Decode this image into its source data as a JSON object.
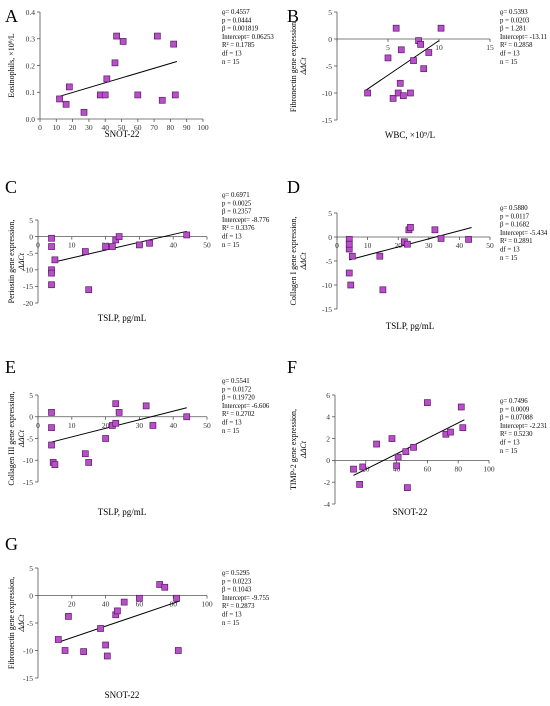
{
  "figure": {
    "panels": [
      {
        "letter": "A",
        "ylabel": [
          "Eosinophils, ×10⁹/L"
        ],
        "xlabel": "SNOT-22",
        "stats": [
          "ϱ= 0.4557",
          "p = 0.0444",
          "β = 0.001819",
          "Intercept= 0.06253",
          "R² = 0.1785",
          "df = 13",
          "n = 15"
        ]
      },
      {
        "letter": "B",
        "ylabel": [
          "Fibronectin gene expression,",
          "ΔΔCt"
        ],
        "xlabel": "WBC, ×10⁹/L",
        "stats": [
          "ϱ= 0.5393",
          "p = 0.0203",
          "β = 1.281",
          "Intercept= -13.11",
          "R² = 0.2858",
          "df = 13",
          "n = 15"
        ]
      },
      {
        "letter": "C",
        "ylabel": [
          "Periostin gene expression,",
          "ΔΔCt"
        ],
        "xlabel": "TSLP, pg/mL",
        "stats": [
          "ϱ= 0.6971",
          "p = 0.0025",
          "β = 0.2357",
          "Intercept= -8.776",
          "R² = 0.3376",
          "df = 13",
          "n = 15"
        ]
      },
      {
        "letter": "D",
        "ylabel": [
          "Collagen I gene expression,",
          "ΔΔCt"
        ],
        "xlabel": "TSLP, pg/mL",
        "stats": [
          "ϱ= 0.5880",
          "p = 0.0117",
          "β = 0.1682",
          "Intercept= -5.434",
          "R² = 0.2891",
          "df = 13",
          "n = 15"
        ]
      },
      {
        "letter": "E",
        "ylabel": [
          "Collagen III gene expression,",
          "ΔΔCt"
        ],
        "xlabel": "TSLP, pg/mL",
        "stats": [
          "ϱ= 0.5541",
          "p = 0.0172",
          "β = 0.19720",
          "Intercept= -6.606",
          "R² = 0.2702",
          "df = 13",
          "n = 15"
        ]
      },
      {
        "letter": "F",
        "ylabel": [
          "TIMP-2 gene expression,",
          "ΔΔCt"
        ],
        "xlabel": "SNOT-22",
        "stats": [
          "ϱ= 0.7496",
          "p = 0.0009",
          "β = 0.07088",
          "Intercept= -2.231",
          "R² = 0.5230",
          "df = 13",
          "n = 15"
        ]
      },
      {
        "letter": "G",
        "ylabel": [
          "Fibronectin gene expression,",
          "ΔΔCt"
        ],
        "xlabel": "SNOT-22",
        "stats": [
          "ϱ= 0.5295",
          "p = 0.0223",
          "β = 0.1043",
          "Intercept= -9.755",
          "R² = 0.2873",
          "df = 13",
          "n = 15"
        ]
      }
    ]
  },
  "colors": {
    "marker_fill": "#b84fc8",
    "marker_stroke": "#5a1a66",
    "line": "#000000",
    "axis": "#555555"
  },
  "chart_data": [
    {
      "type": "scatter",
      "panel": "A",
      "xlim": [
        0,
        100
      ],
      "ylim": [
        0.0,
        0.4
      ],
      "xticks": [
        0,
        10,
        20,
        30,
        40,
        50,
        60,
        70,
        80,
        90,
        100
      ],
      "yticks": [
        0.0,
        0.1,
        0.2,
        0.3,
        0.4
      ],
      "x_tick_labels": [
        "0",
        "10",
        "20",
        "30",
        "40",
        "50",
        "60",
        "70",
        "80",
        "90",
        "100"
      ],
      "y_tick_labels": [
        "0.0",
        "0.1",
        "0.2",
        "0.3",
        "0.4"
      ],
      "x": [
        12,
        16,
        18,
        27,
        37,
        40,
        41,
        46,
        47,
        51,
        60,
        72,
        75,
        82,
        83
      ],
      "y": [
        0.075,
        0.055,
        0.12,
        0.025,
        0.09,
        0.09,
        0.15,
        0.21,
        0.31,
        0.29,
        0.09,
        0.31,
        0.07,
        0.28,
        0.09
      ],
      "fit": {
        "x": [
          10,
          84
        ],
        "y": [
          0.081,
          0.215
        ]
      }
    },
    {
      "type": "scatter",
      "panel": "B",
      "xlim": [
        0,
        15
      ],
      "ylim": [
        -15,
        5
      ],
      "xticks": [
        0,
        5,
        10,
        15
      ],
      "yticks": [
        -15,
        -10,
        -5,
        0,
        5
      ],
      "x_tick_labels": [
        "",
        "5",
        "10",
        "15"
      ],
      "y_tick_labels": [
        "-15",
        "-10",
        "-5",
        "0",
        "5"
      ],
      "x": [
        3,
        5,
        5.5,
        5.8,
        6,
        6.2,
        6.3,
        6.5,
        7.2,
        7.5,
        8,
        8.2,
        8.5,
        9,
        10.2
      ],
      "y": [
        -10,
        -3.5,
        -11,
        2,
        -10,
        -8.2,
        -2,
        -10.5,
        -10,
        -4,
        -0.3,
        -1,
        -5.5,
        -2.5,
        2
      ],
      "fit": {
        "x": [
          2.8,
          10
        ],
        "y": [
          -9.52,
          -0.3
        ]
      }
    },
    {
      "type": "scatter",
      "panel": "C",
      "xlim": [
        0,
        50
      ],
      "ylim": [
        -20,
        5
      ],
      "xticks": [
        0,
        10,
        20,
        30,
        40,
        50
      ],
      "yticks": [
        -20,
        -15,
        -10,
        -5,
        0,
        5
      ],
      "x_tick_labels": [
        "0",
        "10",
        "20",
        "30",
        "40",
        "50"
      ],
      "y_tick_labels": [
        "-20",
        "-15",
        "-10",
        "-5",
        "0",
        "5"
      ],
      "x": [
        4,
        4,
        4,
        4,
        4,
        5,
        14,
        15,
        20,
        22,
        23,
        24,
        30,
        33,
        44
      ],
      "y": [
        -0.5,
        -3,
        -10,
        -11,
        -14.5,
        -7,
        -4.5,
        -16,
        -3,
        -3,
        -1,
        0,
        -2.5,
        -2,
        0.5
      ],
      "fit": {
        "x": [
          4,
          44
        ],
        "y": [
          -7.83,
          1.59
        ]
      }
    },
    {
      "type": "scatter",
      "panel": "D",
      "xlim": [
        0,
        50
      ],
      "ylim": [
        -15,
        5
      ],
      "xticks": [
        0,
        10,
        20,
        30,
        40,
        50
      ],
      "yticks": [
        -15,
        -10,
        -5,
        0,
        5
      ],
      "x_tick_labels": [
        "0",
        "10",
        "20",
        "30",
        "40",
        "50"
      ],
      "y_tick_labels": [
        "-15",
        "-10",
        "-5",
        "0",
        "5"
      ],
      "x": [
        4,
        4,
        4,
        4.5,
        5,
        14,
        15,
        22,
        23,
        23.5,
        24,
        32,
        34,
        43,
        4
      ],
      "y": [
        -0.5,
        -2.5,
        -7.5,
        -10,
        -4,
        -4,
        -11,
        -1,
        -1.5,
        1.5,
        2,
        1.5,
        -0.3,
        -0.5,
        -1.5
      ],
      "fit": {
        "x": [
          4,
          44
        ],
        "y": [
          -4.76,
          1.97
        ]
      }
    },
    {
      "type": "scatter",
      "panel": "E",
      "xlim": [
        0,
        50
      ],
      "ylim": [
        -15,
        5
      ],
      "xticks": [
        0,
        10,
        20,
        30,
        40,
        50
      ],
      "yticks": [
        -15,
        -10,
        -5,
        0,
        5
      ],
      "x_tick_labels": [
        "0",
        "10",
        "20",
        "30",
        "40",
        "50"
      ],
      "y_tick_labels": [
        "-15",
        "-10",
        "-5",
        "0",
        "5"
      ],
      "x": [
        4,
        4,
        4,
        4.5,
        5,
        14,
        15,
        20,
        22,
        23,
        24,
        32,
        34,
        44,
        23
      ],
      "y": [
        1,
        -2.5,
        -6.5,
        -10.5,
        -11,
        -8.5,
        -10.5,
        -5,
        -2,
        3,
        1,
        2.5,
        -2,
        0,
        -1.5
      ],
      "fit": {
        "x": [
          4,
          44
        ],
        "y": [
          -5.82,
          2.07
        ]
      }
    },
    {
      "type": "scatter",
      "panel": "F",
      "xlim": [
        0,
        100
      ],
      "ylim": [
        -4,
        6
      ],
      "xticks": [
        0,
        20,
        40,
        60,
        80,
        100
      ],
      "yticks": [
        -4,
        -2,
        0,
        2,
        4,
        6
      ],
      "x_tick_labels": [
        "",
        "20",
        "40",
        "60",
        "80",
        "100"
      ],
      "y_tick_labels": [
        "-4",
        "-2",
        "0",
        "2",
        "4",
        "6"
      ],
      "x": [
        12,
        16,
        18,
        27,
        37,
        40,
        41,
        46,
        47,
        51,
        60,
        72,
        75,
        82,
        83
      ],
      "y": [
        -0.8,
        -2.2,
        -0.6,
        1.5,
        2,
        -0.5,
        0.3,
        0.8,
        -2.5,
        1.2,
        5.3,
        2.4,
        2.6,
        4.9,
        3
      ],
      "fit": {
        "x": [
          12,
          84
        ],
        "y": [
          -1.38,
          3.72
        ]
      }
    },
    {
      "type": "scatter",
      "panel": "G",
      "xlim": [
        0,
        100
      ],
      "ylim": [
        -15,
        5
      ],
      "xticks": [
        0,
        20,
        40,
        60,
        80,
        100
      ],
      "yticks": [
        -15,
        -10,
        -5,
        0,
        5
      ],
      "x_tick_labels": [
        "",
        "20",
        "40",
        "60",
        "80",
        "100"
      ],
      "y_tick_labels": [
        "-15",
        "-10",
        "-5",
        "0",
        "5"
      ],
      "x": [
        12,
        16,
        18,
        27,
        37,
        40,
        41,
        46,
        47,
        51,
        60,
        72,
        75,
        82,
        83
      ],
      "y": [
        -8,
        -10,
        -3.8,
        -10.2,
        -6,
        -9,
        -11,
        -3.5,
        -2.8,
        -1.2,
        -0.5,
        2,
        1.5,
        -0.5,
        -10
      ],
      "fit": {
        "x": [
          12,
          84
        ],
        "y": [
          -8.5,
          -0.99
        ]
      }
    }
  ]
}
